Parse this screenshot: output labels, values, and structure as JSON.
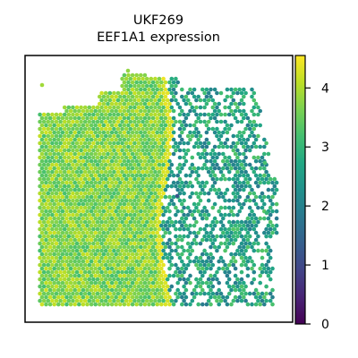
{
  "chart_data": {
    "type": "scatter",
    "subtype": "spatial-hex-spot-map",
    "title_lines": [
      "UKF269",
      "EEF1A1 expression"
    ],
    "xlabel": "",
    "ylabel": "",
    "x_ticks_shown": false,
    "y_ticks_shown": false,
    "grid": false,
    "colorbar": {
      "colormap": "viridis",
      "range": [
        0,
        4.55
      ],
      "ticks": [
        0,
        1,
        2,
        3,
        4
      ],
      "tick_labels": [
        "0",
        "1",
        "2",
        "3",
        "4"
      ],
      "placement": "right"
    },
    "series": [
      {
        "region": "left tissue (left of fold)",
        "x_range": [
          0.0,
          0.55
        ],
        "typical_value": 3.7,
        "value_range": [
          3.0,
          4.3
        ]
      },
      {
        "region": "fold edge column",
        "x_range": [
          0.5,
          0.56
        ],
        "typical_value": 4.3,
        "value_range": [
          4.0,
          4.5
        ]
      },
      {
        "region": "right tissue (right of fold, sparse)",
        "x_range": [
          0.56,
          1.0
        ],
        "typical_value": 2.6,
        "value_range": [
          2.0,
          3.5
        ]
      }
    ],
    "outliers": [
      {
        "description": "isolated low-expression spot",
        "value": 1.2
      }
    ]
  }
}
